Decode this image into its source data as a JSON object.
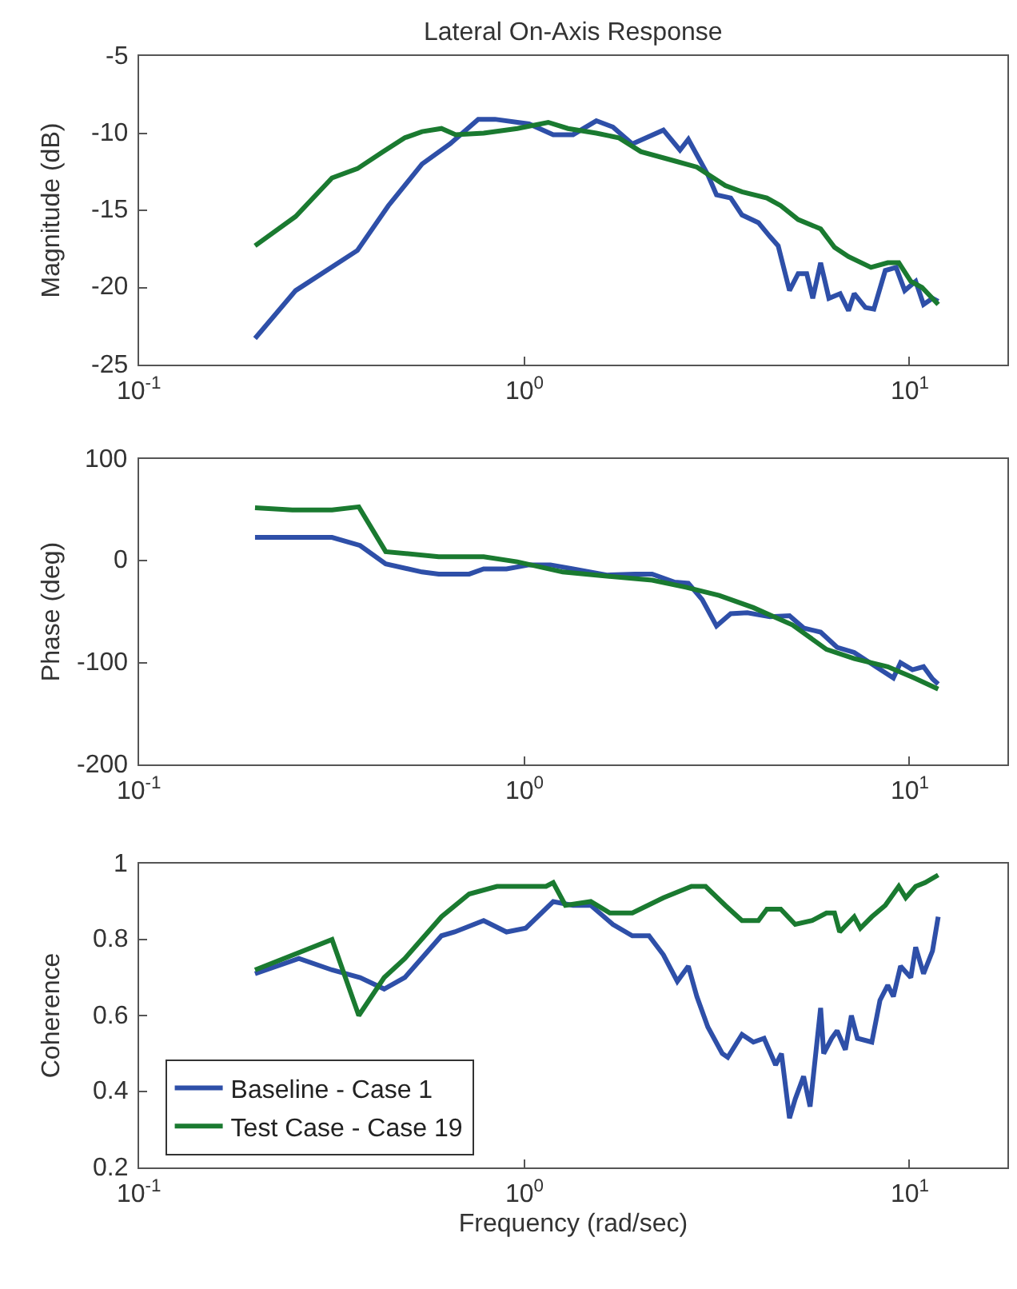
{
  "chart_data": [
    {
      "type": "line",
      "title": "Lateral On-Axis Response",
      "ylabel": "Magnitude (dB)",
      "log": "x",
      "legend": false,
      "line_style": "solid",
      "marker": "none",
      "xlim": [
        0.1,
        18
      ],
      "xticks": [
        {
          "value": 0.1,
          "label": "10$^{-1}$"
        },
        {
          "value": 1,
          "label": "10$^{0}$"
        },
        {
          "value": 10,
          "label": "10$^{1}$"
        }
      ],
      "ylim": [
        -25,
        -5
      ],
      "yticks": [
        -25,
        -20,
        -15,
        -10,
        -5
      ],
      "series": [
        {
          "color": "#2e4fa8",
          "x": [
            0.2,
            0.255,
            0.369,
            0.444,
            0.543,
            0.642,
            0.76,
            0.84,
            1.03,
            1.19,
            1.34,
            1.54,
            1.7,
            1.91,
            2.3,
            2.54,
            2.67,
            3.0,
            3.16,
            3.44,
            3.68,
            4.06,
            4.35,
            4.57,
            4.89,
            5.15,
            5.42,
            5.62,
            5.89,
            6.19,
            6.62,
            6.96,
            7.2,
            7.7,
            8.1,
            8.67,
            9.25,
            9.74,
            10.4,
            10.9,
            11.5,
            11.9
          ],
          "values": [
            -23.3,
            -20.2,
            -17.6,
            -14.7,
            -12.0,
            -10.7,
            -9.1,
            -9.1,
            -9.4,
            -10.1,
            -10.1,
            -9.2,
            -9.6,
            -10.7,
            -9.8,
            -11.1,
            -10.4,
            -12.7,
            -14.0,
            -14.2,
            -15.3,
            -15.8,
            -16.7,
            -17.3,
            -20.2,
            -19.1,
            -19.1,
            -20.7,
            -18.4,
            -20.7,
            -20.4,
            -21.5,
            -20.4,
            -21.3,
            -21.4,
            -18.9,
            -18.7,
            -20.2,
            -19.6,
            -21.1,
            -20.7,
            -20.9
          ]
        },
        {
          "color": "#1a7a30",
          "x": [
            0.2,
            0.255,
            0.317,
            0.369,
            0.43,
            0.49,
            0.543,
            0.61,
            0.664,
            0.785,
            0.96,
            1.155,
            1.3,
            1.54,
            1.76,
            2.01,
            2.46,
            2.81,
            3.33,
            3.68,
            4.27,
            4.64,
            5.15,
            5.89,
            6.4,
            6.96,
            7.96,
            8.8,
            9.4,
            10.1,
            10.8,
            11.9
          ],
          "values": [
            -17.3,
            -15.4,
            -12.9,
            -12.3,
            -11.2,
            -10.3,
            -9.9,
            -9.7,
            -10.1,
            -10.0,
            -9.7,
            -9.3,
            -9.7,
            -10.0,
            -10.3,
            -11.2,
            -11.8,
            -12.2,
            -13.4,
            -13.8,
            -14.2,
            -14.7,
            -15.6,
            -16.2,
            -17.4,
            -18.0,
            -18.7,
            -18.4,
            -18.4,
            -19.6,
            -20.0,
            -21.1
          ]
        }
      ]
    },
    {
      "type": "line",
      "ylabel": "Phase (deg)",
      "log": "x",
      "legend": false,
      "line_style": "solid",
      "marker": "none",
      "xlim": [
        0.1,
        18
      ],
      "xticks": [
        {
          "value": 0.1,
          "label": "10$^{-1}$"
        },
        {
          "value": 1,
          "label": "10$^{0}$"
        },
        {
          "value": 10,
          "label": "10$^{1}$"
        }
      ],
      "ylim": [
        -200,
        100
      ],
      "yticks": [
        -200,
        -100,
        0,
        100
      ],
      "series": [
        {
          "color": "#2e4fa8",
          "x": [
            0.2,
            0.317,
            0.375,
            0.437,
            0.543,
            0.6,
            0.72,
            0.785,
            0.9,
            1.03,
            1.17,
            1.34,
            1.64,
            1.94,
            2.15,
            2.46,
            2.67,
            2.9,
            3.16,
            3.44,
            3.8,
            4.35,
            4.89,
            5.32,
            5.89,
            6.5,
            7.2,
            8.2,
            9.1,
            9.5,
            10.2,
            10.9,
            11.5,
            11.9
          ],
          "values": [
            23,
            23,
            15,
            -3,
            -11,
            -13,
            -13,
            -8,
            -8,
            -4,
            -4,
            -8,
            -14,
            -13,
            -13,
            -21,
            -22,
            -38,
            -64,
            -52,
            -51,
            -55,
            -54,
            -66,
            -70,
            -85,
            -90,
            -104,
            -115,
            -100,
            -107,
            -104,
            -116,
            -121
          ]
        },
        {
          "color": "#1a7a30",
          "x": [
            0.2,
            0.25,
            0.317,
            0.372,
            0.437,
            0.6,
            0.785,
            0.96,
            1.26,
            1.64,
            2.15,
            2.63,
            3.21,
            3.94,
            4.98,
            6.1,
            7.2,
            8.8,
            10.3,
            11.9
          ],
          "values": [
            52,
            50,
            50,
            53,
            9,
            4,
            4,
            -1,
            -11,
            -15,
            -19,
            -26,
            -34,
            -46,
            -63,
            -87,
            -96,
            -104,
            -115,
            -126
          ]
        }
      ]
    },
    {
      "type": "line",
      "xlabel": "Frequency (rad/sec)",
      "ylabel": "Coherence",
      "log": "x",
      "legend": "bottom left",
      "line_style": "solid",
      "marker": "none",
      "xlim": [
        0.1,
        18
      ],
      "xticks": [
        {
          "value": 0.1,
          "label": "10$^{-1}$"
        },
        {
          "value": 1,
          "label": "10$^{0}$"
        },
        {
          "value": 10,
          "label": "10$^{1}$"
        }
      ],
      "ylim": [
        0.2,
        1
      ],
      "yticks": [
        0.2,
        0.4,
        0.6,
        0.8,
        1
      ],
      "series": [
        {
          "name": "Baseline - Case 1",
          "color": "#2e4fa8",
          "x": [
            0.2,
            0.26,
            0.317,
            0.375,
            0.433,
            0.49,
            0.61,
            0.66,
            0.785,
            0.9,
            1.01,
            1.19,
            1.34,
            1.49,
            1.7,
            1.91,
            2.11,
            2.3,
            2.5,
            2.67,
            2.81,
            3.0,
            3.27,
            3.38,
            3.68,
            3.94,
            4.2,
            4.5,
            4.66,
            4.89,
            5.06,
            5.32,
            5.53,
            5.89,
            6.0,
            6.29,
            6.5,
            6.83,
            7.08,
            7.34,
            8.0,
            8.4,
            8.8,
            9.1,
            9.5,
            10.1,
            10.4,
            10.9,
            11.5,
            11.9
          ],
          "values": [
            0.71,
            0.75,
            0.72,
            0.7,
            0.67,
            0.7,
            0.81,
            0.82,
            0.85,
            0.82,
            0.83,
            0.9,
            0.89,
            0.89,
            0.84,
            0.81,
            0.81,
            0.76,
            0.69,
            0.73,
            0.65,
            0.57,
            0.5,
            0.49,
            0.55,
            0.53,
            0.54,
            0.47,
            0.5,
            0.33,
            0.38,
            0.44,
            0.36,
            0.62,
            0.5,
            0.54,
            0.56,
            0.51,
            0.6,
            0.54,
            0.53,
            0.64,
            0.68,
            0.65,
            0.73,
            0.7,
            0.78,
            0.71,
            0.77,
            0.86
          ]
        },
        {
          "name": "Test Case - Case 19",
          "color": "#1a7a30",
          "x": [
            0.2,
            0.317,
            0.372,
            0.433,
            0.49,
            0.61,
            0.72,
            0.85,
            1.14,
            1.19,
            1.28,
            1.49,
            1.67,
            1.91,
            2.3,
            2.72,
            2.96,
            3.33,
            3.68,
            4.06,
            4.27,
            4.64,
            5.06,
            5.6,
            6.1,
            6.4,
            6.6,
            7.2,
            7.47,
            8.0,
            8.67,
            9.4,
            9.8,
            10.4,
            11.0,
            11.9
          ],
          "values": [
            0.72,
            0.8,
            0.6,
            0.7,
            0.75,
            0.86,
            0.92,
            0.94,
            0.94,
            0.95,
            0.89,
            0.9,
            0.87,
            0.87,
            0.91,
            0.94,
            0.94,
            0.89,
            0.85,
            0.85,
            0.88,
            0.88,
            0.84,
            0.85,
            0.87,
            0.87,
            0.82,
            0.86,
            0.83,
            0.86,
            0.89,
            0.94,
            0.91,
            0.94,
            0.95,
            0.97
          ]
        }
      ]
    }
  ]
}
